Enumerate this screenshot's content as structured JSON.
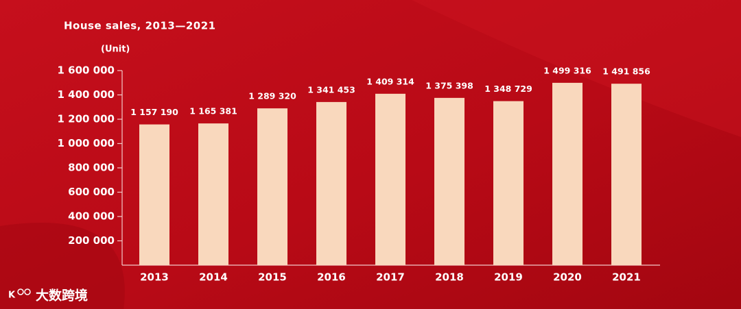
{
  "chart_data": {
    "type": "bar",
    "title": "House sales, 2013—2021",
    "y_label": "(Unit)",
    "watermark": "大数跨境",
    "categories": [
      "2013",
      "2014",
      "2015",
      "2016",
      "2017",
      "2018",
      "2019",
      "2020",
      "2021"
    ],
    "values": [
      1157190,
      1165381,
      1289320,
      1341453,
      1409314,
      1375398,
      1348729,
      1499316,
      1491856
    ],
    "value_labels": [
      "1 157 190",
      "1 165 381",
      "1 289 320",
      "1 341 453",
      "1 409 314",
      "1 375 398",
      "1 348 729",
      "1 499 316",
      "1 491 856"
    ],
    "color": "#f9d8bd",
    "ylim": [
      0,
      1600000
    ],
    "yticks": [
      {
        "value": 200000,
        "label": "200 000"
      },
      {
        "value": 400000,
        "label": "400 000"
      },
      {
        "value": 600000,
        "label": "600 000"
      },
      {
        "value": 800000,
        "label": "800 000"
      },
      {
        "value": 1000000,
        "label": "1 000 000"
      },
      {
        "value": 1200000,
        "label": "1 200 000"
      },
      {
        "value": 1400000,
        "label": "1 400 000"
      },
      {
        "value": 1600000,
        "label": "1 600 000"
      }
    ],
    "grid": false
  }
}
